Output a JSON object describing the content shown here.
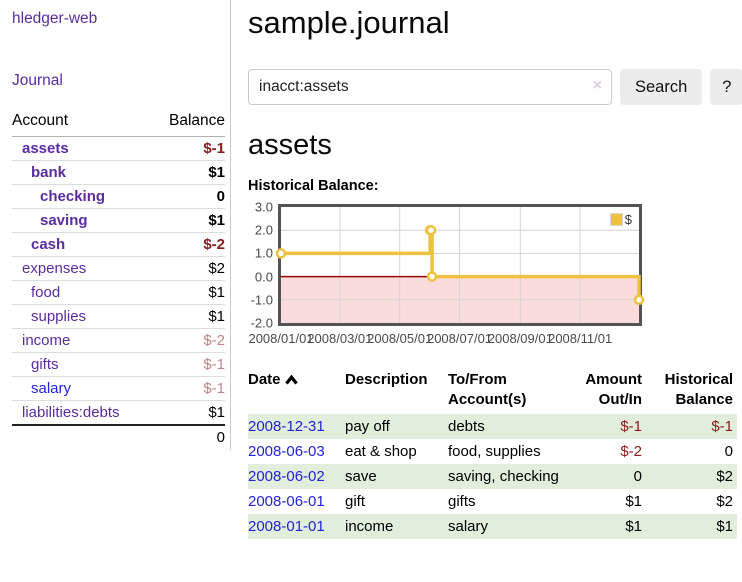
{
  "colors": {
    "link_purple": "#5a2ca0",
    "link_blue": "#2222dd",
    "negative_strong": "#8b1a1a",
    "negative_soft": "#c28484",
    "row_highlight_green": "#e0eedb",
    "series_yellow": "#edc240",
    "chart_negative_region": "#fbdcdc",
    "chart_zero_line": "#990000"
  },
  "sidebar": {
    "app_title": "hledger-web",
    "nav": {
      "journal_label": "Journal"
    },
    "accounts_table": {
      "headers": {
        "account": "Account",
        "balance": "Balance"
      },
      "rows": [
        {
          "name": "assets",
          "balance": "$-1",
          "level": 1,
          "bold": true,
          "name_style": "purple",
          "balance_style": "neg"
        },
        {
          "name": "bank",
          "balance": "$1",
          "level": 2,
          "bold": true,
          "name_style": "purple",
          "balance_style": "normal"
        },
        {
          "name": "checking",
          "balance": "0",
          "level": 3,
          "bold": true,
          "name_style": "purple",
          "balance_style": "normal"
        },
        {
          "name": "saving",
          "balance": "$1",
          "level": 3,
          "bold": true,
          "name_style": "purple",
          "balance_style": "normal"
        },
        {
          "name": "cash",
          "balance": "$-2",
          "level": 2,
          "bold": true,
          "name_style": "purple",
          "balance_style": "neg"
        },
        {
          "name": "expenses",
          "balance": "$2",
          "level": 1,
          "bold": false,
          "name_style": "purple",
          "balance_style": "normal"
        },
        {
          "name": "food",
          "balance": "$1",
          "level": 2,
          "bold": false,
          "name_style": "purple",
          "balance_style": "normal"
        },
        {
          "name": "supplies",
          "balance": "$1",
          "level": 2,
          "bold": false,
          "name_style": "purple",
          "balance_style": "normal"
        },
        {
          "name": "income",
          "balance": "$-2",
          "level": 1,
          "bold": false,
          "name_style": "purple",
          "balance_style": "neg-soft"
        },
        {
          "name": "gifts",
          "balance": "$-1",
          "level": 2,
          "bold": false,
          "name_style": "purple",
          "balance_style": "neg-soft"
        },
        {
          "name": "salary",
          "balance": "$-1",
          "level": 2,
          "bold": false,
          "name_style": "blue",
          "balance_style": "neg-soft"
        },
        {
          "name": "liabilities:debts",
          "balance": "$1",
          "level": 1,
          "bold": false,
          "name_style": "purple",
          "balance_style": "normal"
        }
      ],
      "total": "0"
    }
  },
  "header": {
    "title": "sample.journal"
  },
  "search": {
    "value": "inacct:assets",
    "placeholder": "",
    "clear_icon": "×",
    "search_button": "Search",
    "help_button": "?"
  },
  "account_page": {
    "heading": "assets",
    "chart_title": "Historical Balance:"
  },
  "chart_data": {
    "type": "line",
    "style": "step-after",
    "title": "Historical Balance:",
    "series": [
      {
        "name": "$",
        "color": "#edc240",
        "points": [
          [
            "2008-01-01",
            1.0
          ],
          [
            "2008-06-01",
            2.0
          ],
          [
            "2008-06-02",
            2.0
          ],
          [
            "2008-06-03",
            0.0
          ],
          [
            "2008-12-31",
            -1.0
          ]
        ]
      }
    ],
    "x_range": [
      "2008-01-01",
      "2008-12-31"
    ],
    "ylim": [
      -2.0,
      3.0
    ],
    "y_ticks": [
      {
        "label": "3.0",
        "value": 3
      },
      {
        "label": "2.0",
        "value": 2
      },
      {
        "label": "1.0",
        "value": 1
      },
      {
        "label": "0.0",
        "value": 0
      },
      {
        "label": "-1.0",
        "value": -1
      },
      {
        "label": "-2.0",
        "value": -2
      }
    ],
    "x_ticks": [
      {
        "label": "2008/01/01",
        "date": "2008-01-01"
      },
      {
        "label": "2008/03/01",
        "date": "2008-03-01"
      },
      {
        "label": "2008/05/01",
        "date": "2008-05-01"
      },
      {
        "label": "2008/07/01",
        "date": "2008-07-01"
      },
      {
        "label": "2008/09/01",
        "date": "2008-09-01"
      },
      {
        "label": "2008/11/01",
        "date": "2008-11-01"
      }
    ],
    "legend": {
      "label": "$",
      "position": "top-right"
    },
    "grid": true,
    "negative_region_color": "#fbdcdc",
    "zero_line_color": "#990000"
  },
  "transactions": {
    "columns": [
      {
        "label": "Date",
        "align": "left",
        "sorted": "ascending"
      },
      {
        "label": "Description",
        "align": "left"
      },
      {
        "label": "To/From Account(s)",
        "align": "left"
      },
      {
        "label": "Amount Out/In",
        "align": "right"
      },
      {
        "label": "Historical Balance",
        "align": "right"
      }
    ],
    "rows": [
      {
        "date": "2008-12-31",
        "description": "pay off",
        "accounts": "debts",
        "amount": "$-1",
        "amount_negative": true,
        "balance": "$-1",
        "balance_negative": true,
        "highlight": true
      },
      {
        "date": "2008-06-03",
        "description": "eat & shop",
        "accounts": "food, supplies",
        "amount": "$-2",
        "amount_negative": true,
        "balance": "0",
        "balance_negative": false,
        "highlight": false
      },
      {
        "date": "2008-06-02",
        "description": "save",
        "accounts": "saving, checking",
        "amount": "0",
        "amount_negative": false,
        "balance": "$2",
        "balance_negative": false,
        "highlight": true
      },
      {
        "date": "2008-06-01",
        "description": "gift",
        "accounts": "gifts",
        "amount": "$1",
        "amount_negative": false,
        "balance": "$2",
        "balance_negative": false,
        "highlight": false
      },
      {
        "date": "2008-01-01",
        "description": "income",
        "accounts": "salary",
        "amount": "$1",
        "amount_negative": false,
        "balance": "$1",
        "balance_negative": false,
        "highlight": true
      }
    ]
  }
}
